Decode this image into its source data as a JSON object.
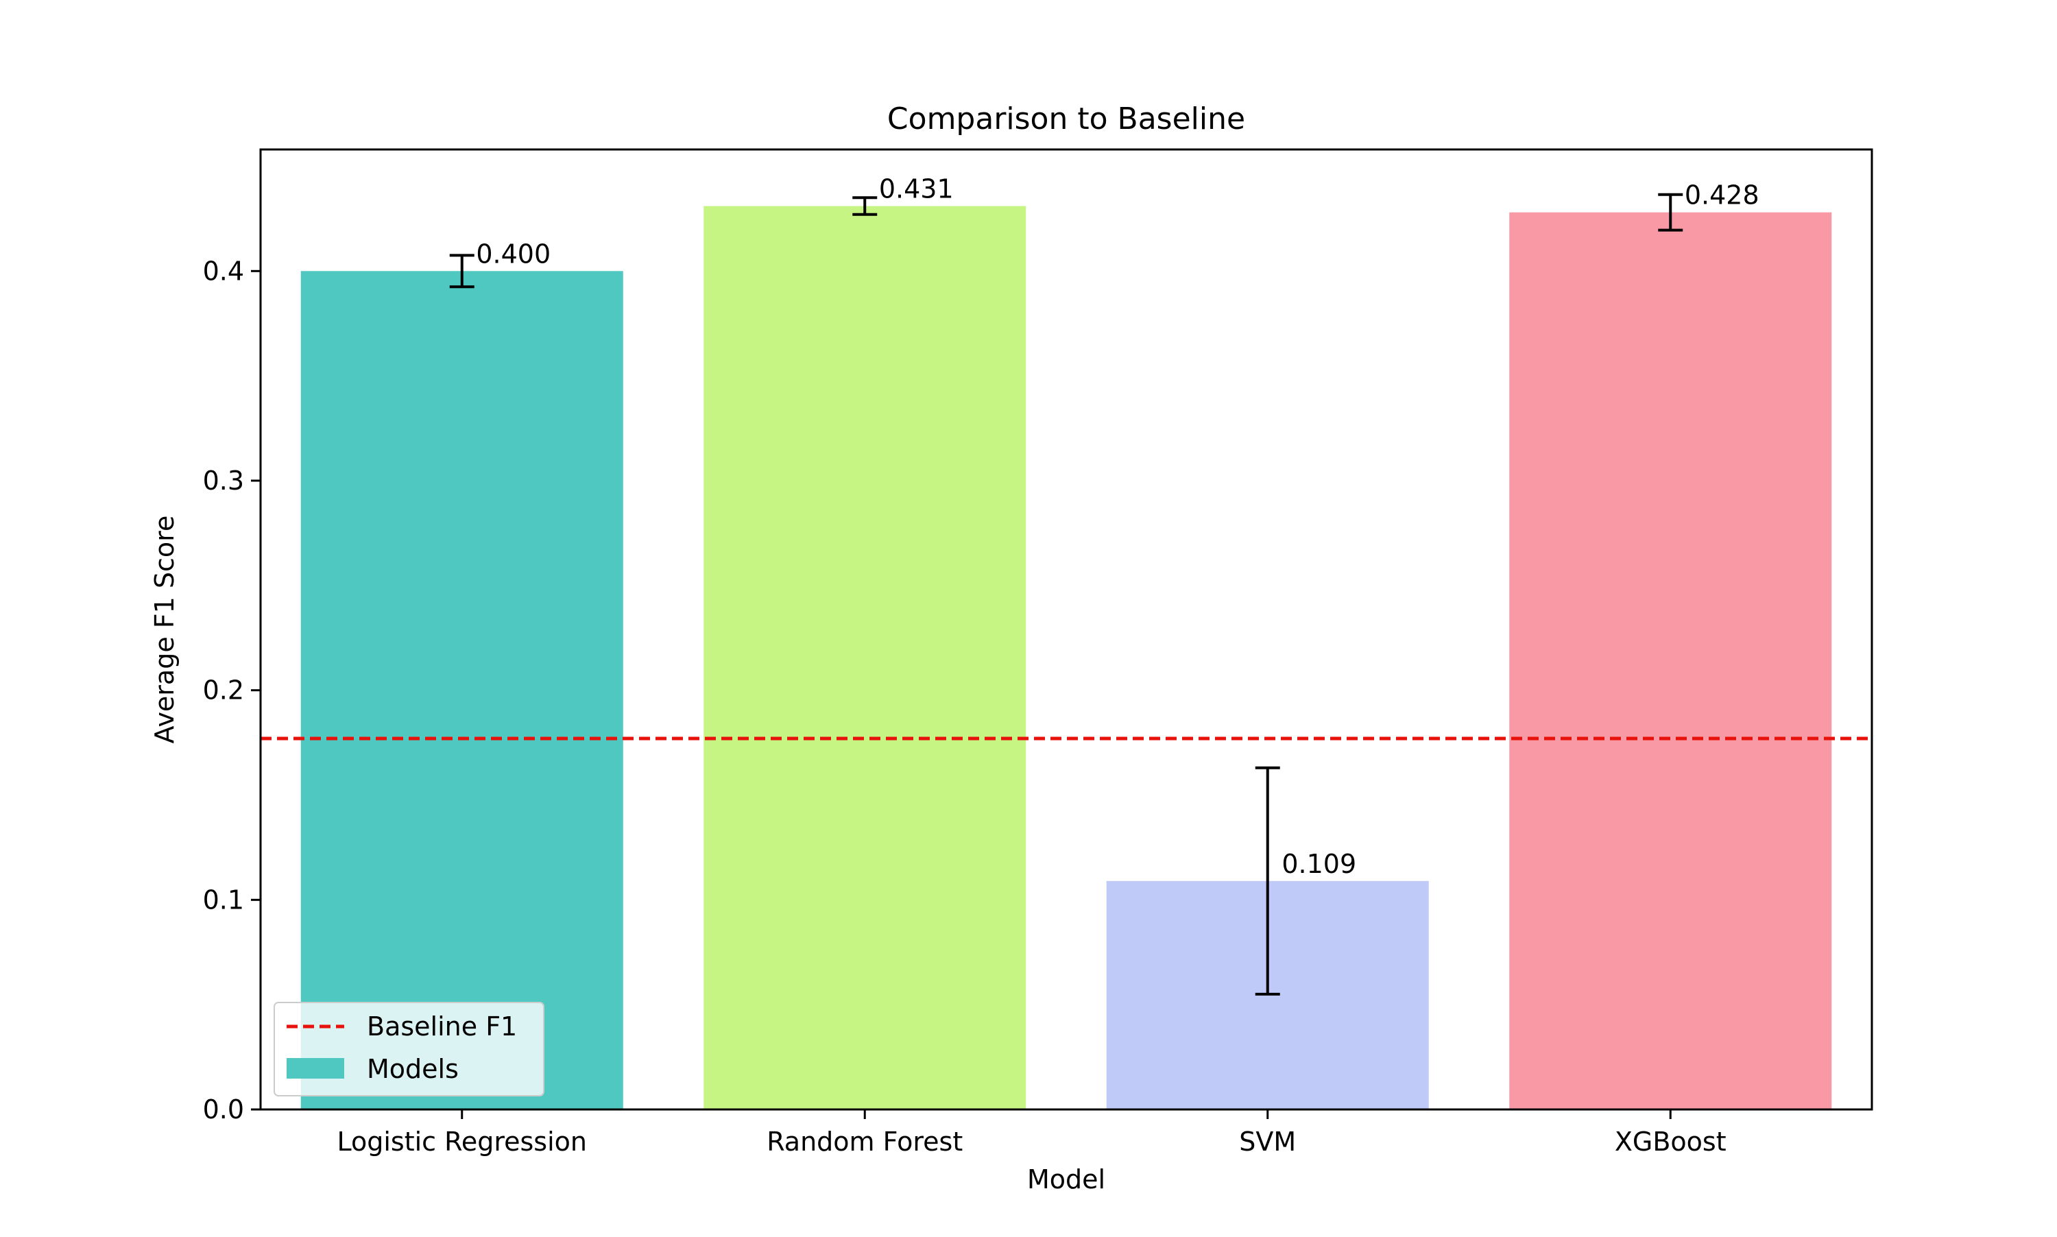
{
  "chart_data": {
    "type": "bar",
    "title": "Comparison to Baseline",
    "xlabel": "Model",
    "ylabel": "Average F1 Score",
    "categories": [
      "Logistic Regression",
      "Random Forest",
      "SVM",
      "XGBoost"
    ],
    "values": [
      0.4,
      0.431,
      0.109,
      0.428
    ],
    "value_labels": [
      "0.400",
      "0.431",
      "0.109",
      "0.428"
    ],
    "errors": [
      0.0075,
      0.004,
      0.054,
      0.0085
    ],
    "colors": [
      "#4ec8c0",
      "#c6f584",
      "#bfcaf8",
      "#f899a5"
    ],
    "baseline": {
      "name": "Baseline F1",
      "value": 0.177,
      "color": "#e8120c",
      "style": "dashed"
    },
    "series": [
      {
        "name": "Models"
      }
    ],
    "ylim": [
      0,
      0.458
    ],
    "yticks": [
      0.0,
      0.1,
      0.2,
      0.3,
      0.4
    ],
    "ytick_labels": [
      "0.0",
      "0.1",
      "0.2",
      "0.3",
      "0.4"
    ],
    "grid": false,
    "legend_position": "bottom-left"
  }
}
